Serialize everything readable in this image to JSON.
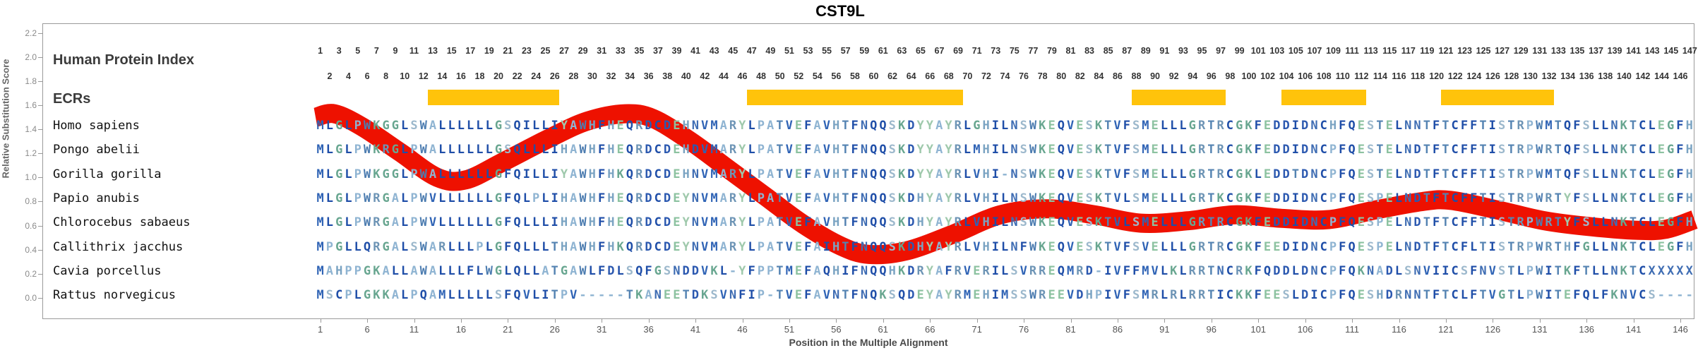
{
  "title": "CST9L",
  "header": {
    "protein_index_label": "Human Protein Index",
    "ecrs_label": "ECRs",
    "index_numbers_odd": [
      1,
      3,
      5,
      7,
      9,
      11,
      13,
      15,
      17,
      19,
      21,
      23,
      25,
      27,
      29,
      31,
      33,
      35,
      37,
      39,
      41,
      43,
      45,
      47,
      49,
      51,
      53,
      55,
      57,
      59,
      61,
      63,
      65,
      67,
      69,
      71,
      73,
      75,
      77,
      79,
      81,
      83,
      85,
      87,
      89,
      91,
      93,
      95,
      97,
      99,
      101,
      103,
      105,
      107,
      109,
      111,
      113,
      115,
      117,
      119,
      121,
      123,
      125,
      127,
      129,
      131,
      133,
      135,
      137,
      139,
      141,
      143,
      145,
      147
    ],
    "index_numbers_even": [
      2,
      4,
      6,
      8,
      10,
      12,
      14,
      16,
      18,
      20,
      22,
      24,
      26,
      28,
      30,
      32,
      34,
      36,
      38,
      40,
      42,
      44,
      46,
      48,
      50,
      52,
      54,
      56,
      58,
      60,
      62,
      64,
      66,
      68,
      70,
      72,
      74,
      76,
      78,
      80,
      82,
      84,
      86,
      88,
      90,
      92,
      94,
      96,
      98,
      100,
      102,
      104,
      106,
      108,
      110,
      112,
      114,
      116,
      118,
      120,
      122,
      124,
      126,
      128,
      130,
      132,
      134,
      136,
      138,
      140,
      142,
      144,
      146
    ]
  },
  "axes": {
    "y_label": "Relative Substitution Score",
    "y_tick_labels": [
      "2.2",
      "2.0",
      "1.8",
      "1.6",
      "1.4",
      "1.2",
      "1.0",
      "0.8",
      "0.6",
      "0.4",
      "0.2",
      "0.0"
    ],
    "y_tick_values": [
      2.2,
      2.0,
      1.8,
      1.6,
      1.4,
      1.2,
      1.0,
      0.8,
      0.6,
      0.4,
      0.2,
      0.0
    ],
    "x_label": "Position in the Multiple Alignment",
    "x_tick_values": [
      1,
      6,
      11,
      16,
      21,
      26,
      31,
      36,
      41,
      46,
      51,
      56,
      61,
      66,
      71,
      76,
      81,
      86,
      91,
      96,
      101,
      106,
      111,
      116,
      121,
      126,
      131,
      136,
      141,
      146
    ]
  },
  "alignment": {
    "length": 147,
    "species": [
      {
        "name": "Homo sapiens",
        "seq": "MLGLPWKGGLSWALLLLLLGSQILLIYAWHFHEQRDCDEHNVMARYLPATVEFAVHTFNQQSKDYYAYRLGHILNSWKEQVESKTVFSMELLLGRTRCGKFEDDIDNCHFQESTELNNTFTCFFTISTRPWMTQFSLLNKTCLEGFH"
      },
      {
        "name": "Pongo abelii",
        "seq": "MLGLPWKRGLPWALLLLLLGSQLLLIHAWHFHEQRDCDEHDVMARYLPATVEFAVHTFNQQSKDYYAYRLMHILNSWKEQVESKTVFSMELLLGRTRCGKFEDDIDNCPFQESTELNDTFTCFFTISTRPWRTQFSLLNKTCLEGFH"
      },
      {
        "name": "Gorilla gorilla",
        "seq": "MLGLPWKGGLPWALLLLLLGFQILLIYAWHFHKQRDCDEHNVMARYLPATVEFAVHTFNQQSKDYYAYRLVHI-NSWKEQVESKTVFSMELLLGRTRCGKLEDDTDNCPFQESTELNDTFTCFFTISTRPWMTQFSLLNKTCLEGFH"
      },
      {
        "name": "Papio anubis",
        "seq": "MLGLPWRGALPWVLLLLLLGFQLPLIHAWHFHEQRDCDEYNVMARYLPATVEFAVHTFNQQSKDHYAYRLVHILNSWKEQVESKTVLSMELLLGRTKCGKFEDDIDNCPFQESPELNDTFTCFFTISTRPWRTYFSLLNKTCLEGFH"
      },
      {
        "name": "Chlorocebus sabaeus",
        "seq": "MLGLPWRGALPWVLLLLLLGFQLLLIHAWHFHEQRDCDEYNVMARYLPATVEFAVHTFNQQSKDHYAYRLVHILNSWKEQVESKTVLSMELLLGRTRCGKFEDDIDNCPFQESPELNDTFTCFFTISTRPWRTYFSLLNKTCLEGFH"
      },
      {
        "name": "Callithrix jacchus",
        "seq": "MPGLLQRGALSWARLLLPLGFQLLLTHAWHFHKQRDCDEYNVMARYLPATVEFAIHTFNQQSKDHYAYRLVHILNFWKEQVESKTVFSVELLLGRTRCGKFEEDIDNCPFQESPELNDTFTCFLTISTRPWRTHFGLLNKTCLEGFH"
      },
      {
        "name": "Cavia porcellus",
        "seq": "MAHPPGKALLAWALLLFLWGLQLLATGAWLFDLSQFGSNDDVKL-YFPPTMEFAQHIFNQQHKDRYAFRVERILSVRREQMRD-IVFFMVLKLRRTNCRKFQDDLDNCPFQKNADLSNVIICSFNVSTLPWITKFTLLNKTCXXXXX"
      },
      {
        "name": "Rattus norvegicus",
        "seq": "MSCPLGKKALPQAMLLLLLSFQVLITPV-----TKANEETDKSVNFIP-TVEFAVNTFNQKSQDEYAYRMEHIMSSWREEVDHPIVFSMRLRLRRTICKKFEESLDICPFQESHDRNNTFTCLFTVGTLPWITEFQLFKNVCS----"
      }
    ]
  },
  "ecr_regions": [
    {
      "start_col": 13,
      "end_col": 26
    },
    {
      "start_col": 47,
      "end_col": 69
    },
    {
      "start_col": 88,
      "end_col": 97
    },
    {
      "start_col": 104,
      "end_col": 112
    },
    {
      "start_col": 121,
      "end_col": 132
    }
  ],
  "colors": {
    "ecr_bar": "#FFC30B",
    "curve": "#EE1100",
    "residues": {
      "A": "#8FB4D2",
      "C": "#1F4EA8",
      "D": "#2C59B0",
      "E": "#8CC2A0",
      "F": "#1F4EA8",
      "G": "#68A690",
      "H": "#7AA3C2",
      "I": "#1F4EA8",
      "K": "#68A690",
      "L": "#1F4EA8",
      "M": "#2F63B5",
      "N": "#3F6DB3",
      "P": "#8FB4D2",
      "Q": "#1F4EA8",
      "R": "#6D94B5",
      "S": "#9CB8CC",
      "T": "#5483B2",
      "V": "#2F63B5",
      "W": "#4C7CB0",
      "Y": "#9FC9AC",
      "X": "#3F6DB3",
      "-": "#8FB4D2"
    }
  },
  "chart_data": {
    "type": "line",
    "title": "CST9L",
    "xlabel": "Position in the Multiple Alignment",
    "ylabel": "Relative Substitution Score",
    "xlim": [
      1,
      147
    ],
    "ylim": [
      0.0,
      2.2
    ],
    "grid": false,
    "series": [
      {
        "name": "relative-substitution-score-curve",
        "x": [
          0,
          2,
          5,
          9,
          13,
          16,
          20,
          25,
          29,
          33,
          36,
          40,
          44,
          48,
          52,
          56,
          59,
          63,
          68,
          73,
          78,
          83,
          88,
          93,
          98,
          103,
          108,
          113,
          118,
          121,
          126,
          131,
          136,
          141,
          144,
          147
        ],
        "y": [
          1.5,
          1.53,
          1.42,
          1.21,
          1.0,
          0.98,
          1.13,
          1.33,
          1.47,
          1.53,
          1.49,
          1.3,
          1.07,
          0.84,
          0.61,
          0.43,
          0.36,
          0.39,
          0.53,
          0.69,
          0.74,
          0.69,
          0.62,
          0.64,
          0.69,
          0.66,
          0.65,
          0.73,
          0.8,
          0.81,
          0.73,
          0.64,
          0.59,
          0.56,
          0.57,
          0.65
        ]
      }
    ],
    "annotations": [
      "ECR highlighted regions at alignment columns 13-26, 47-69, 88-97, 104-112, 121-132"
    ]
  }
}
